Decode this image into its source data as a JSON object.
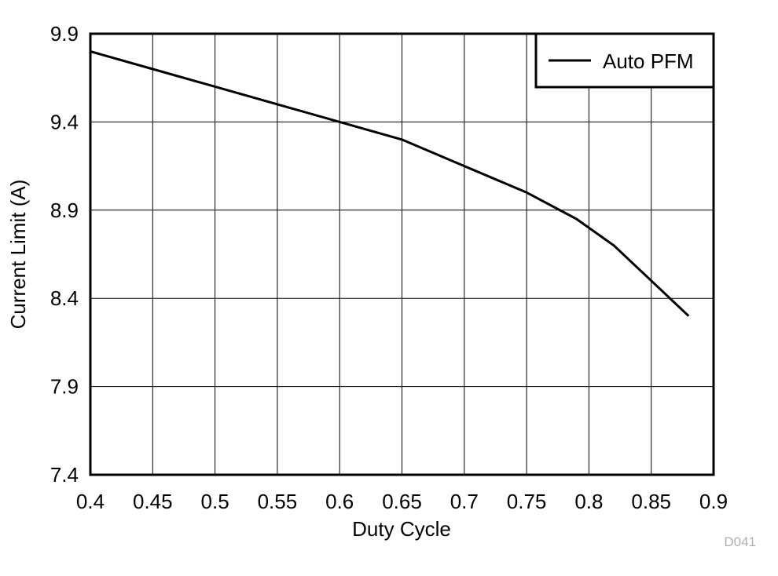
{
  "chart_data": {
    "type": "line",
    "xlabel": "Duty Cycle",
    "ylabel": "Current Limit (A)",
    "xlim": [
      0.4,
      0.9
    ],
    "ylim": [
      7.4,
      9.9
    ],
    "xticks": [
      "0.4",
      "0.45",
      "0.5",
      "0.55",
      "0.6",
      "0.65",
      "0.7",
      "0.75",
      "0.8",
      "0.85",
      "0.9"
    ],
    "yticks": [
      "7.4",
      "7.9",
      "8.4",
      "8.9",
      "9.4",
      "9.9"
    ],
    "grid": true,
    "legend_position": "top-right",
    "series": [
      {
        "name": "Auto PFM",
        "color": "#000000",
        "x": [
          0.4,
          0.45,
          0.5,
          0.55,
          0.6,
          0.65,
          0.7,
          0.75,
          0.79,
          0.82,
          0.85,
          0.88
        ],
        "y": [
          9.8,
          9.7,
          9.6,
          9.5,
          9.4,
          9.3,
          9.15,
          9.0,
          8.85,
          8.7,
          8.5,
          8.3
        ]
      }
    ]
  },
  "figure_code": "D041"
}
